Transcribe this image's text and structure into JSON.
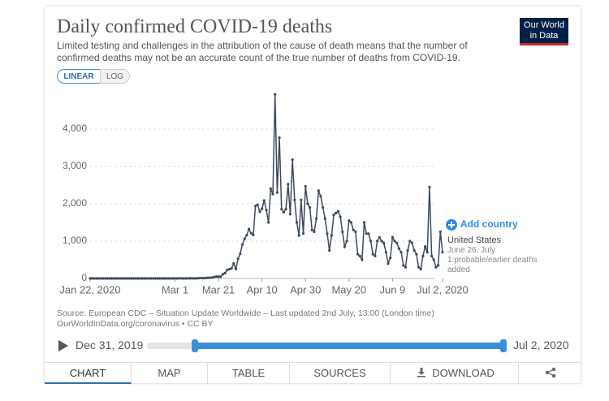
{
  "chart_data": {
    "type": "line",
    "title": "Daily confirmed COVID-19 deaths",
    "subtitle": "Limited testing and challenges in the attribution of the cause of death means that the number of confirmed deaths may not be an accurate count of the true number of deaths from COVID-19.",
    "x": [
      "2020-01-22",
      "2020-01-23",
      "2020-01-24",
      "2020-01-25",
      "2020-01-26",
      "2020-01-27",
      "2020-01-28",
      "2020-01-29",
      "2020-01-30",
      "2020-01-31",
      "2020-02-01",
      "2020-02-02",
      "2020-02-03",
      "2020-02-04",
      "2020-02-05",
      "2020-02-06",
      "2020-02-07",
      "2020-02-08",
      "2020-02-09",
      "2020-02-10",
      "2020-02-11",
      "2020-02-12",
      "2020-02-13",
      "2020-02-14",
      "2020-02-15",
      "2020-02-16",
      "2020-02-17",
      "2020-02-18",
      "2020-02-19",
      "2020-02-20",
      "2020-02-21",
      "2020-02-22",
      "2020-02-23",
      "2020-02-24",
      "2020-02-25",
      "2020-02-26",
      "2020-02-27",
      "2020-02-28",
      "2020-02-29",
      "2020-03-01",
      "2020-03-02",
      "2020-03-03",
      "2020-03-04",
      "2020-03-05",
      "2020-03-06",
      "2020-03-07",
      "2020-03-08",
      "2020-03-09",
      "2020-03-10",
      "2020-03-11",
      "2020-03-12",
      "2020-03-13",
      "2020-03-14",
      "2020-03-15",
      "2020-03-16",
      "2020-03-17",
      "2020-03-18",
      "2020-03-19",
      "2020-03-20",
      "2020-03-21",
      "2020-03-22",
      "2020-03-23",
      "2020-03-24",
      "2020-03-25",
      "2020-03-26",
      "2020-03-27",
      "2020-03-28",
      "2020-03-29",
      "2020-03-30",
      "2020-03-31",
      "2020-04-01",
      "2020-04-02",
      "2020-04-03",
      "2020-04-04",
      "2020-04-05",
      "2020-04-06",
      "2020-04-07",
      "2020-04-08",
      "2020-04-09",
      "2020-04-10",
      "2020-04-11",
      "2020-04-12",
      "2020-04-13",
      "2020-04-14",
      "2020-04-15",
      "2020-04-16",
      "2020-04-17",
      "2020-04-18",
      "2020-04-19",
      "2020-04-20",
      "2020-04-21",
      "2020-04-22",
      "2020-04-23",
      "2020-04-24",
      "2020-04-25",
      "2020-04-26",
      "2020-04-27",
      "2020-04-28",
      "2020-04-29",
      "2020-04-30",
      "2020-05-01",
      "2020-05-02",
      "2020-05-03",
      "2020-05-04",
      "2020-05-05",
      "2020-05-06",
      "2020-05-07",
      "2020-05-08",
      "2020-05-09",
      "2020-05-10",
      "2020-05-11",
      "2020-05-12",
      "2020-05-13",
      "2020-05-14",
      "2020-05-15",
      "2020-05-16",
      "2020-05-17",
      "2020-05-18",
      "2020-05-19",
      "2020-05-20",
      "2020-05-21",
      "2020-05-22",
      "2020-05-23",
      "2020-05-24",
      "2020-05-25",
      "2020-05-26",
      "2020-05-27",
      "2020-05-28",
      "2020-05-29",
      "2020-05-30",
      "2020-05-31",
      "2020-06-01",
      "2020-06-02",
      "2020-06-03",
      "2020-06-04",
      "2020-06-05",
      "2020-06-06",
      "2020-06-07",
      "2020-06-08",
      "2020-06-09",
      "2020-06-10",
      "2020-06-11",
      "2020-06-12",
      "2020-06-13",
      "2020-06-14",
      "2020-06-15",
      "2020-06-16",
      "2020-06-17",
      "2020-06-18",
      "2020-06-19",
      "2020-06-20",
      "2020-06-21",
      "2020-06-22",
      "2020-06-23",
      "2020-06-24",
      "2020-06-25",
      "2020-06-26",
      "2020-06-27",
      "2020-06-28",
      "2020-06-29",
      "2020-06-30",
      "2020-07-01",
      "2020-07-02"
    ],
    "series": [
      {
        "name": "United States",
        "color": "#3d4a5c",
        "values": [
          0,
          0,
          0,
          0,
          0,
          0,
          0,
          0,
          0,
          0,
          0,
          0,
          0,
          0,
          0,
          0,
          0,
          0,
          0,
          0,
          0,
          0,
          0,
          0,
          0,
          0,
          0,
          0,
          0,
          0,
          0,
          0,
          0,
          0,
          0,
          0,
          0,
          0,
          0,
          1,
          0,
          4,
          1,
          1,
          1,
          2,
          3,
          4,
          0,
          3,
          7,
          10,
          7,
          10,
          17,
          19,
          23,
          39,
          50,
          49,
          46,
          113,
          141,
          225,
          247,
          268,
          402,
          255,
          525,
          661,
          909,
          1059,
          1161,
          1320,
          1212,
          1164,
          1939,
          1973,
          1783,
          1868,
          2087,
          1831,
          1500,
          2405,
          2258,
          4928,
          2299,
          3770,
          1856,
          1772,
          1857,
          2524,
          1721,
          3179,
          2100,
          1500,
          1150,
          2100,
          1200,
          2470,
          2000,
          1900,
          1300,
          1250,
          1600,
          2350,
          2200,
          1900,
          1600,
          1200,
          750,
          1150,
          1700,
          1750,
          1800,
          1650,
          1250,
          850,
          1000,
          1550,
          1500,
          1300,
          1250,
          650,
          600,
          500,
          1500,
          1200,
          1200,
          1000,
          650,
          600,
          1000,
          1100,
          1000,
          950,
          700,
          400,
          550,
          1100,
          1000,
          950,
          800,
          700,
          350,
          300,
          750,
          1000,
          950,
          750,
          650,
          300,
          250,
          600,
          850,
          700,
          2450,
          600,
          500,
          300,
          350,
          1250,
          700
        ]
      }
    ],
    "annotation": "June 26, July 1:probable/earlier deaths added",
    "xlim": [
      "2020-01-22",
      "2020-07-02"
    ],
    "xticks": [
      {
        "value": "2020-01-22",
        "label": "Jan 22, 2020"
      },
      {
        "value": "2020-03-01",
        "label": "Mar 1"
      },
      {
        "value": "2020-03-21",
        "label": "Mar 21"
      },
      {
        "value": "2020-04-10",
        "label": "Apr 10"
      },
      {
        "value": "2020-04-30",
        "label": "Apr 30"
      },
      {
        "value": "2020-05-20",
        "label": "May 20"
      },
      {
        "value": "2020-06-09",
        "label": "Jun 9"
      },
      {
        "value": "2020-07-02",
        "label": "Jul 2, 2020"
      }
    ],
    "ylim": [
      0,
      5000
    ],
    "yticks": [
      0,
      {
        "value": 1000,
        "label": "1,000"
      },
      {
        "value": 2000,
        "label": "2,000"
      },
      {
        "value": 3000,
        "label": "3,000"
      },
      {
        "value": 4000,
        "label": "4,000"
      }
    ],
    "grid": true
  },
  "ui": {
    "logo": "Our World in Data",
    "scale_buttons": [
      "LINEAR",
      "LOG"
    ],
    "add_country": "Add country",
    "sources": [
      "Source: European CDC – Situation Update Worldwide – Last updated 2nd July, 13:00 (London time)",
      "OurWorldInData.org/coronavirus • CC BY"
    ],
    "timeline": {
      "start": "Dec 31, 2019",
      "end": "Jul 2, 2020"
    },
    "tabs": [
      "CHART",
      "MAP",
      "TABLE",
      "SOURCES",
      "DOWNLOAD"
    ]
  }
}
